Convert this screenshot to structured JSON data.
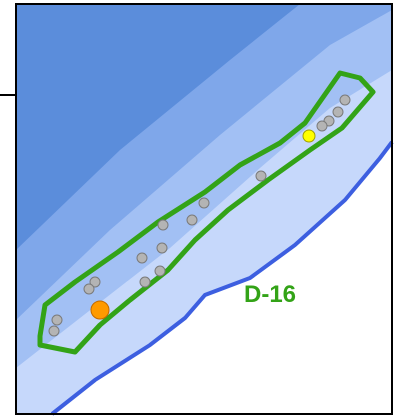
{
  "map": {
    "zone_label": "D-16",
    "colors": {
      "zone_outline": "#33a317",
      "zone_label": "#33a317",
      "shore_line": "#3d5fe0",
      "depth_deep": "#5b8ddb",
      "depth_mid": "#7fa7ea",
      "depth_shallow": "#a2c0f4",
      "depth_nearshore": "#c6d8fb",
      "land": "#ffffff",
      "frame": "#000000",
      "sample_point": "#b4b4b4",
      "highlight_orange": "#ff9a00",
      "highlight_yellow": "#ffff00"
    }
  }
}
